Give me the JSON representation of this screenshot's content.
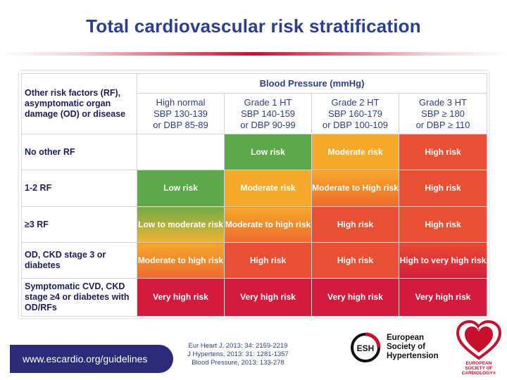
{
  "title": "Total cardiovascular risk stratification",
  "table": {
    "corner": "Other risk factors (RF), asymptomatic organ damage (OD) or disease",
    "bp_header": "Blood Pressure (mmHg)",
    "columns": [
      {
        "name": "High normal",
        "line2": "SBP 130-139",
        "line3": "or DBP 85-89"
      },
      {
        "name": "Grade 1 HT",
        "line2": "SBP 140-159",
        "line3": "or DBP 90-99"
      },
      {
        "name": "Grade 2 HT",
        "line2": "SBP 160-179",
        "line3": "or DBP 100-109"
      },
      {
        "name": "Grade 3 HT",
        "line2": "SBP ≥ 180",
        "line3": "or DBP ≥ 110"
      }
    ],
    "rows": [
      {
        "label": "No other RF",
        "cells": [
          "",
          "Low risk",
          "Moderate risk",
          "High risk"
        ]
      },
      {
        "label": "1-2 RF",
        "cells": [
          "Low risk",
          "Moderate risk",
          "Moderate to High risk",
          "High risk"
        ]
      },
      {
        "label": "≥3 RF",
        "cells": [
          "Low to moderate risk",
          "Moderate to high risk",
          "High risk",
          "High risk"
        ]
      },
      {
        "label": "OD, CKD stage 3 or diabetes",
        "cells": [
          "Moderate to high risk",
          "High risk",
          "High risk",
          "High to very high risk"
        ]
      },
      {
        "label": "Symptomatic CVD, CKD stage ≥4 or diabetes with OD/RFs",
        "cells": [
          "Very high risk",
          "Very high risk",
          "Very high risk",
          "Very high risk"
        ]
      }
    ]
  },
  "footer": {
    "url": "www.escardio.org/guidelines",
    "refs": [
      "Eur Heart J, 2013; 34: 2159-2219",
      "J Hypertens, 2013: 31: 1281-1357",
      "Blood Pressure, 2013: 133-278"
    ],
    "esh_abbr": "ESH",
    "esh_lines": [
      "European",
      "Society of",
      "Hypertension"
    ],
    "esc_lines": [
      "EUROPEAN",
      "SOCIETY OF",
      "CARDIOLOGY®"
    ]
  },
  "colors": {
    "title": "#2a3f8f",
    "low": "#5ca84a",
    "moderate": "#f4a92a",
    "high": "#e94f33",
    "very_high": "#d51b3d",
    "footer_bar": "#2e2a7a"
  }
}
